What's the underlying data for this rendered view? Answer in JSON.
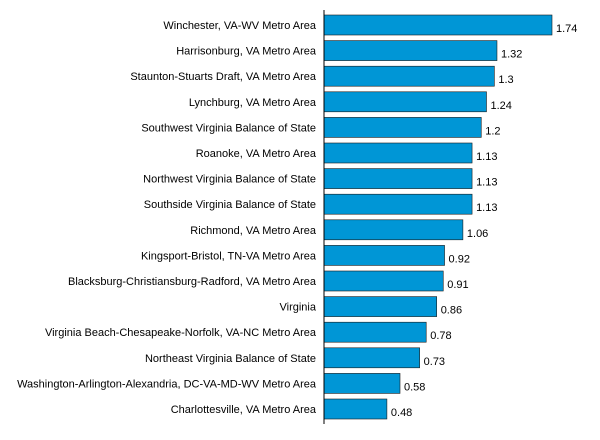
{
  "chart_data": {
    "type": "bar",
    "orientation": "horizontal",
    "title": "",
    "xlabel": "",
    "ylabel": "",
    "xlim": [
      0,
      1.75
    ],
    "grid": false,
    "legend": "none",
    "bar_color": "#0096d6",
    "categories": [
      "Winchester, VA-WV Metro Area",
      "Harrisonburg, VA Metro Area",
      "Staunton-Stuarts Draft, VA Metro Area",
      "Lynchburg, VA Metro Area",
      "Southwest Virginia Balance of State",
      "Roanoke, VA Metro Area",
      "Northwest Virginia Balance of State",
      "Southside Virginia Balance of State",
      "Richmond, VA Metro Area",
      "Kingsport-Bristol, TN-VA Metro Area",
      "Blacksburg-Christiansburg-Radford, VA Metro Area",
      "Virginia",
      "Virginia Beach-Chesapeake-Norfolk, VA-NC Metro Area",
      "Northeast Virginia Balance of State",
      "Washington-Arlington-Alexandria, DC-VA-MD-WV Metro Area",
      "Charlottesville, VA Metro Area"
    ],
    "values": [
      1.74,
      1.32,
      1.3,
      1.24,
      1.2,
      1.13,
      1.13,
      1.13,
      1.06,
      0.92,
      0.91,
      0.86,
      0.78,
      0.73,
      0.58,
      0.48
    ],
    "value_labels": [
      "1.74",
      "1.32",
      "1.3",
      "1.24",
      "1.2",
      "1.13",
      "1.13",
      "1.13",
      "1.06",
      "0.92",
      "0.91",
      "0.86",
      "0.78",
      "0.73",
      "0.58",
      "0.48"
    ]
  }
}
